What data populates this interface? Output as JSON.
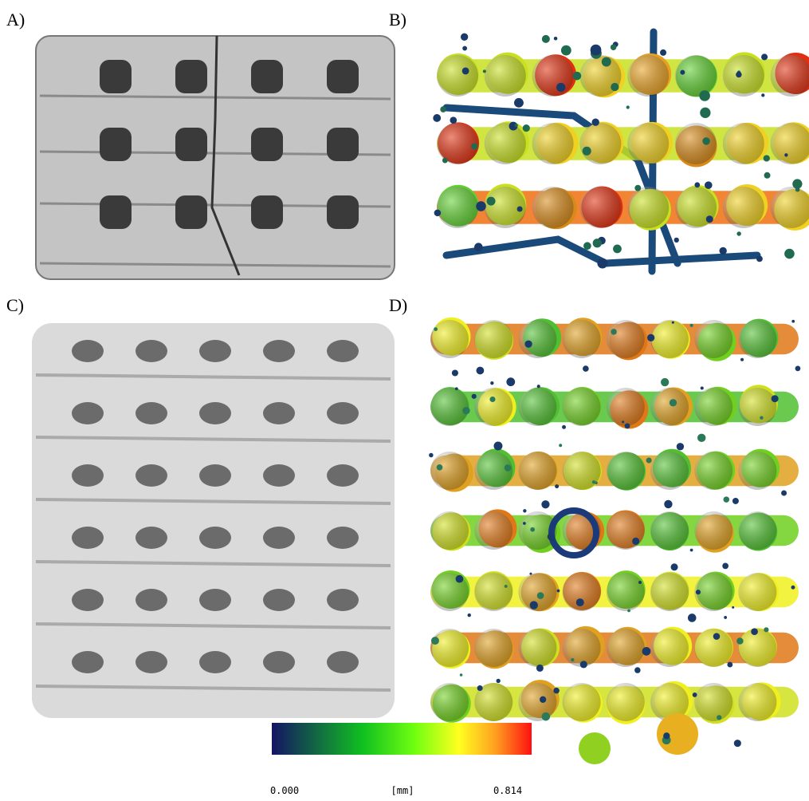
{
  "panels": [
    {
      "label": "A)"
    },
    {
      "label": "B)"
    },
    {
      "label": "C)"
    },
    {
      "label": "D)"
    }
  ],
  "colorbar": {
    "min_label": "0.000",
    "unit": "[mm]",
    "max_label": "0.814"
  }
}
